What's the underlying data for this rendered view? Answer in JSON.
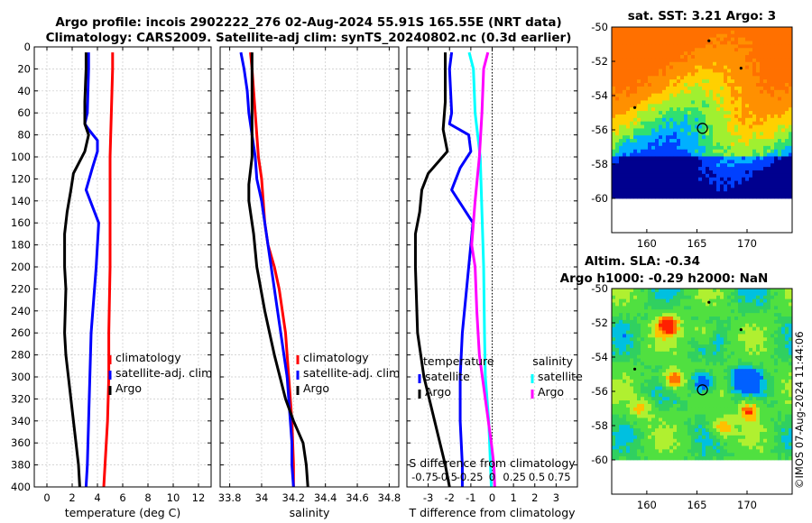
{
  "title": {
    "line1": "Argo profile: incois 2902222_276 02-Aug-2024 55.91S 165.55E (NRT data)",
    "line2": "Climatology: CARS2009. Satellite-adj clim: synTS_20240802.nc (0.3d earlier)"
  },
  "colors": {
    "climatology": "#ff0000",
    "satellite": "#0000ff",
    "argo": "#000000",
    "sat_salinity": "#00ffff",
    "argo_salinity": "#ff00ff"
  },
  "chart_data": [
    {
      "type": "line",
      "id": "temperature",
      "xlabel": "temperature (deg C)",
      "ylabel": "",
      "xlim": [
        -1,
        13
      ],
      "ylim": [
        400,
        0
      ],
      "xticks": [
        0,
        2,
        4,
        6,
        8,
        10,
        12
      ],
      "yticks": [
        0,
        20,
        40,
        60,
        80,
        100,
        120,
        140,
        160,
        180,
        200,
        220,
        240,
        260,
        280,
        300,
        320,
        340,
        360,
        380,
        400
      ],
      "series": [
        {
          "name": "climatology",
          "color": "#ff0000",
          "depth": [
            5,
            20,
            60,
            100,
            150,
            200,
            260,
            300,
            340,
            380,
            400
          ],
          "values": [
            5.2,
            5.2,
            5.1,
            5.0,
            5.0,
            5.0,
            4.9,
            4.9,
            4.8,
            4.6,
            4.5
          ]
        },
        {
          "name": "satellite-adj. clim",
          "color": "#0000ff",
          "depth": [
            5,
            20,
            60,
            70,
            75,
            85,
            95,
            110,
            130,
            160,
            200,
            260,
            300,
            340,
            380,
            400
          ],
          "values": [
            3.3,
            3.3,
            3.2,
            3.0,
            3.3,
            4.0,
            4.0,
            3.6,
            3.1,
            4.1,
            3.9,
            3.5,
            3.4,
            3.3,
            3.2,
            3.1
          ]
        },
        {
          "name": "Argo",
          "color": "#000000",
          "depth": [
            5,
            20,
            50,
            70,
            80,
            95,
            115,
            130,
            150,
            170,
            200,
            220,
            260,
            280,
            300,
            340,
            380,
            400
          ],
          "values": [
            3.1,
            3.1,
            3.0,
            3.0,
            3.3,
            3.0,
            2.1,
            1.9,
            1.6,
            1.4,
            1.4,
            1.5,
            1.4,
            1.5,
            1.7,
            2.1,
            2.5,
            2.6
          ]
        }
      ],
      "legend": [
        "climatology",
        "satellite-adj. clim",
        "Argo"
      ]
    },
    {
      "type": "line",
      "id": "salinity",
      "xlabel": "salinity",
      "ylabel": "",
      "xlim": [
        33.74,
        34.86
      ],
      "ylim": [
        400,
        0
      ],
      "xticks": [
        33.8,
        34,
        34.2,
        34.4,
        34.6,
        34.8
      ],
      "xticklabels": [
        "33.8",
        "34",
        "34.2",
        "34.4",
        "34.6",
        "34.8"
      ],
      "series": [
        {
          "name": "climatology",
          "color": "#ff0000",
          "depth": [
            5,
            20,
            60,
            80,
            100,
            120,
            140,
            160,
            180,
            200,
            220,
            240,
            260,
            280,
            300,
            340,
            380,
            400
          ],
          "values": [
            33.93,
            33.94,
            33.96,
            33.97,
            33.98,
            34.0,
            34.01,
            34.02,
            34.04,
            34.08,
            34.11,
            34.13,
            34.15,
            34.16,
            34.17,
            34.19,
            34.2,
            34.2
          ]
        },
        {
          "name": "satellite-adj. clim",
          "color": "#0000ff",
          "depth": [
            5,
            20,
            40,
            60,
            80,
            100,
            120,
            140,
            160,
            180,
            200,
            220,
            240,
            260,
            280,
            300,
            320,
            340,
            360,
            380,
            400
          ],
          "values": [
            33.87,
            33.89,
            33.91,
            33.92,
            33.94,
            33.96,
            33.97,
            34.0,
            34.02,
            34.04,
            34.06,
            34.08,
            34.1,
            34.12,
            34.14,
            34.16,
            34.17,
            34.18,
            34.19,
            34.19,
            34.2
          ]
        },
        {
          "name": "Argo",
          "color": "#000000",
          "depth": [
            5,
            60,
            100,
            125,
            140,
            170,
            200,
            240,
            280,
            320,
            340,
            360,
            380,
            400
          ],
          "values": [
            33.94,
            33.94,
            33.94,
            33.92,
            33.92,
            33.95,
            33.97,
            34.02,
            34.08,
            34.15,
            34.2,
            34.26,
            34.28,
            34.29
          ]
        }
      ],
      "legend": [
        "climatology",
        "satellite-adj. clim",
        "Argo"
      ]
    },
    {
      "type": "line",
      "id": "difference",
      "xlabel": "T difference from climatology",
      "xlabel_top": "S difference from climatology",
      "ylabel": "",
      "xlim": [
        -4,
        4
      ],
      "ylim": [
        400,
        0
      ],
      "xticks": [
        -3,
        -2,
        -1,
        0,
        1,
        2,
        3
      ],
      "top_xticklabels": [
        "-0.75",
        "-0.5",
        "-0.25",
        "0",
        "0.25",
        "0.5",
        "0.75"
      ],
      "series": [
        {
          "name": "temperature satellite",
          "color": "#0000ff",
          "depth": [
            5,
            20,
            60,
            70,
            80,
            95,
            110,
            130,
            160,
            200,
            260,
            300,
            340,
            380,
            400
          ],
          "values": [
            -1.9,
            -2.0,
            -1.9,
            -2.0,
            -1.1,
            -1.0,
            -1.5,
            -1.9,
            -0.9,
            -1.1,
            -1.4,
            -1.5,
            -1.5,
            -1.4,
            -1.4
          ]
        },
        {
          "name": "temperature Argo",
          "color": "#000000",
          "depth": [
            5,
            20,
            50,
            75,
            95,
            115,
            130,
            150,
            170,
            200,
            260,
            300,
            340,
            380,
            400
          ],
          "values": [
            -2.2,
            -2.2,
            -2.2,
            -2.3,
            -2.1,
            -3.0,
            -3.3,
            -3.4,
            -3.6,
            -3.6,
            -3.5,
            -3.2,
            -2.7,
            -2.2,
            -2.0
          ]
        },
        {
          "name": "salinity satellite",
          "color": "#00ffff",
          "depth": [
            5,
            20,
            60,
            100,
            150,
            200,
            260,
            300,
            340,
            380,
            400
          ],
          "values": [
            -0.27,
            -0.22,
            -0.2,
            -0.14,
            -0.12,
            -0.1,
            -0.09,
            -0.08,
            -0.04,
            -0.02,
            -0.01
          ]
        },
        {
          "name": "salinity Argo",
          "color": "#ff00ff",
          "depth": [
            5,
            20,
            60,
            100,
            140,
            180,
            200,
            240,
            280,
            320,
            360,
            380,
            400
          ],
          "values": [
            -0.05,
            -0.1,
            -0.12,
            -0.15,
            -0.2,
            -0.24,
            -0.2,
            -0.18,
            -0.15,
            -0.08,
            -0.01,
            0.02,
            0.03
          ]
        }
      ],
      "legend_left": {
        "title": "temperature",
        "items": [
          "satellite",
          "Argo"
        ]
      },
      "legend_right": {
        "title": "salinity",
        "items": [
          "satellite",
          "Argo"
        ]
      }
    },
    {
      "type": "heatmap",
      "id": "sst_map",
      "title": "sat. SST: 3.21 Argo: 3",
      "xlim": [
        156.5,
        174.5
      ],
      "ylim": [
        -62,
        -50
      ],
      "xticks": [
        160,
        165,
        170
      ],
      "yticks": [
        -50,
        -52,
        -54,
        -56,
        -58,
        -60
      ],
      "marker": {
        "lon": 165.55,
        "lat": -55.91
      }
    },
    {
      "type": "heatmap",
      "id": "sla_map",
      "title": "Altim. SLA: -0.34",
      "subtitle": "Argo h1000: -0.29 h2000: NaN",
      "xlim": [
        156.5,
        174.5
      ],
      "ylim": [
        -62,
        -50
      ],
      "xticks": [
        160,
        165,
        170
      ],
      "yticks": [
        -50,
        -52,
        -54,
        -56,
        -58,
        -60
      ],
      "marker": {
        "lon": 165.55,
        "lat": -55.91
      }
    }
  ],
  "stamp": "©IMOS 07-Aug-2024 11:44:06"
}
